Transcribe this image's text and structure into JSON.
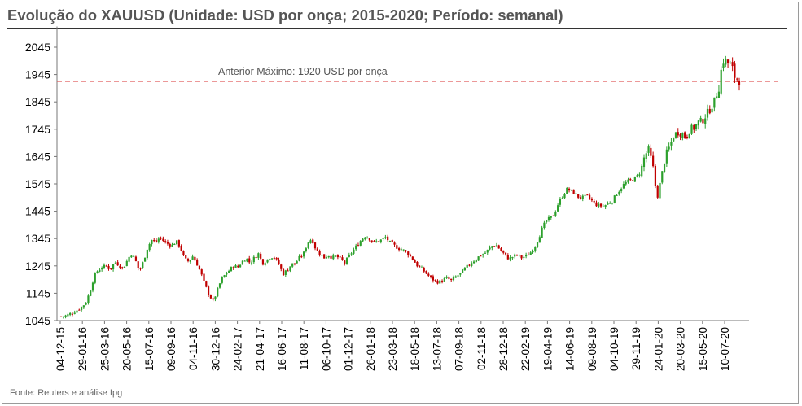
{
  "title": "Evolução do XAUUSD (Unidade: USD por onça; 2015-2020; Período: semanal)",
  "source": "Fonte: Reuters e análise Ipg",
  "colors": {
    "up": "#2ca02c",
    "down": "#c00000",
    "reference": "#e05a5a",
    "axis": "#555555"
  },
  "chart_data": {
    "type": "candlestick",
    "y_ticks": [
      1045,
      1145,
      1245,
      1345,
      1445,
      1545,
      1645,
      1745,
      1845,
      1945,
      2045
    ],
    "ylim": [
      1045,
      2115
    ],
    "x_tick_labels": [
      "04-12-15",
      "29-01-16",
      "25-03-16",
      "20-05-16",
      "15-07-16",
      "09-09-16",
      "04-11-16",
      "30-12-16",
      "24-02-17",
      "21-04-17",
      "16-06-17",
      "11-08-17",
      "06-10-17",
      "01-12-17",
      "26-01-18",
      "23-03-18",
      "18-05-18",
      "13-07-18",
      "07-09-18",
      "02-11-18",
      "28-12-18",
      "22-02-19",
      "19-04-19",
      "14-06-19",
      "09-08-19",
      "04-10-19",
      "29-11-19",
      "24-01-20",
      "20-03-20",
      "15-05-20",
      "10-07-20"
    ],
    "reference_line": {
      "value": 1920,
      "label": "Anterior Máximo:  1920 USD por onça"
    },
    "close_path": [
      1060,
      1062,
      1068,
      1076,
      1084,
      1095,
      1110,
      1150,
      1205,
      1230,
      1240,
      1245,
      1232,
      1260,
      1250,
      1235,
      1262,
      1290,
      1270,
      1225,
      1260,
      1310,
      1340,
      1330,
      1350,
      1335,
      1325,
      1320,
      1335,
      1315,
      1270,
      1262,
      1280,
      1255,
      1220,
      1175,
      1140,
      1115,
      1155,
      1195,
      1215,
      1230,
      1245,
      1240,
      1260,
      1275,
      1255,
      1275,
      1290,
      1255,
      1265,
      1280,
      1275,
      1250,
      1215,
      1230,
      1250,
      1255,
      1275,
      1290,
      1330,
      1345,
      1305,
      1290,
      1275,
      1285,
      1275,
      1280,
      1270,
      1255,
      1280,
      1300,
      1320,
      1340,
      1355,
      1345,
      1330,
      1335,
      1340,
      1350,
      1330,
      1320,
      1310,
      1305,
      1295,
      1280,
      1260,
      1240,
      1230,
      1215,
      1200,
      1190,
      1185,
      1195,
      1200,
      1190,
      1205,
      1215,
      1230,
      1245,
      1260,
      1270,
      1285,
      1290,
      1305,
      1320,
      1320,
      1300,
      1285,
      1270,
      1280,
      1285,
      1275,
      1280,
      1290,
      1310,
      1340,
      1380,
      1410,
      1420,
      1435,
      1475,
      1500,
      1525,
      1520,
      1510,
      1495,
      1495,
      1500,
      1485,
      1470,
      1465,
      1462,
      1475,
      1480,
      1505,
      1525,
      1545,
      1555,
      1560,
      1570,
      1590,
      1650,
      1670,
      1605,
      1490,
      1570,
      1645,
      1680,
      1720,
      1735,
      1730,
      1715,
      1745,
      1750,
      1770,
      1775,
      1800,
      1820,
      1850,
      1900,
      2000,
      1990,
      1975,
      1935,
      1930
    ],
    "x_axis_labels_rotated": true
  }
}
